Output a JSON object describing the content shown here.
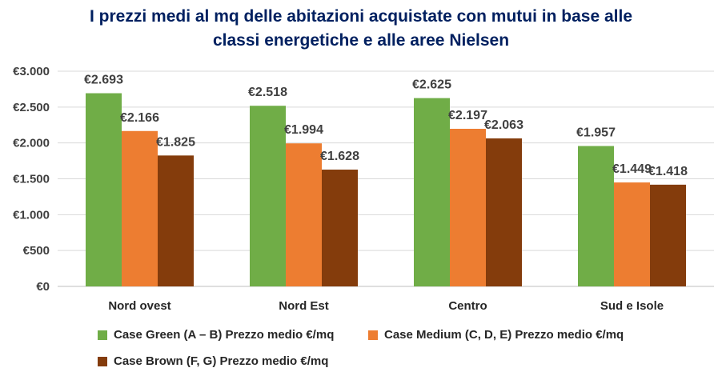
{
  "title_line1": "I prezzi medi al mq delle abitazioni acquistate con mutui in base alle",
  "title_line2": "classi energetiche e alle aree Nielsen",
  "chart_data": {
    "type": "bar",
    "categories": [
      "Nord ovest",
      "Nord Est",
      "Centro",
      "Sud e Isole"
    ],
    "series": [
      {
        "name": "Case Green (A – B) Prezzo medio €/mq",
        "values": [
          2693,
          2518,
          2625,
          1957
        ],
        "labels": [
          "€2.693",
          "€2.518",
          "€2.625",
          "€1.957"
        ],
        "color": "#70AD47"
      },
      {
        "name": "Case Medium (C, D, E) Prezzo medio €/mq",
        "values": [
          2166,
          1994,
          2197,
          1449
        ],
        "labels": [
          "€2.166",
          "€1.994",
          "€2.197",
          "€1.449"
        ],
        "color": "#ED7D31"
      },
      {
        "name": "Case Brown (F, G) Prezzo medio €/mq",
        "values": [
          1825,
          1628,
          2063,
          1418
        ],
        "labels": [
          "€1.825",
          "€1.628",
          "€2.063",
          "€1.418"
        ],
        "color": "#843C0C"
      }
    ],
    "ylim": [
      0,
      3000
    ],
    "yticks": [
      0,
      500,
      1000,
      1500,
      2000,
      2500,
      3000
    ],
    "ytick_labels": [
      "€0",
      "€500",
      "€1.000",
      "€1.500",
      "€2.000",
      "€2.500",
      "€3.000"
    ],
    "grid": true,
    "legend_position": "bottom"
  }
}
